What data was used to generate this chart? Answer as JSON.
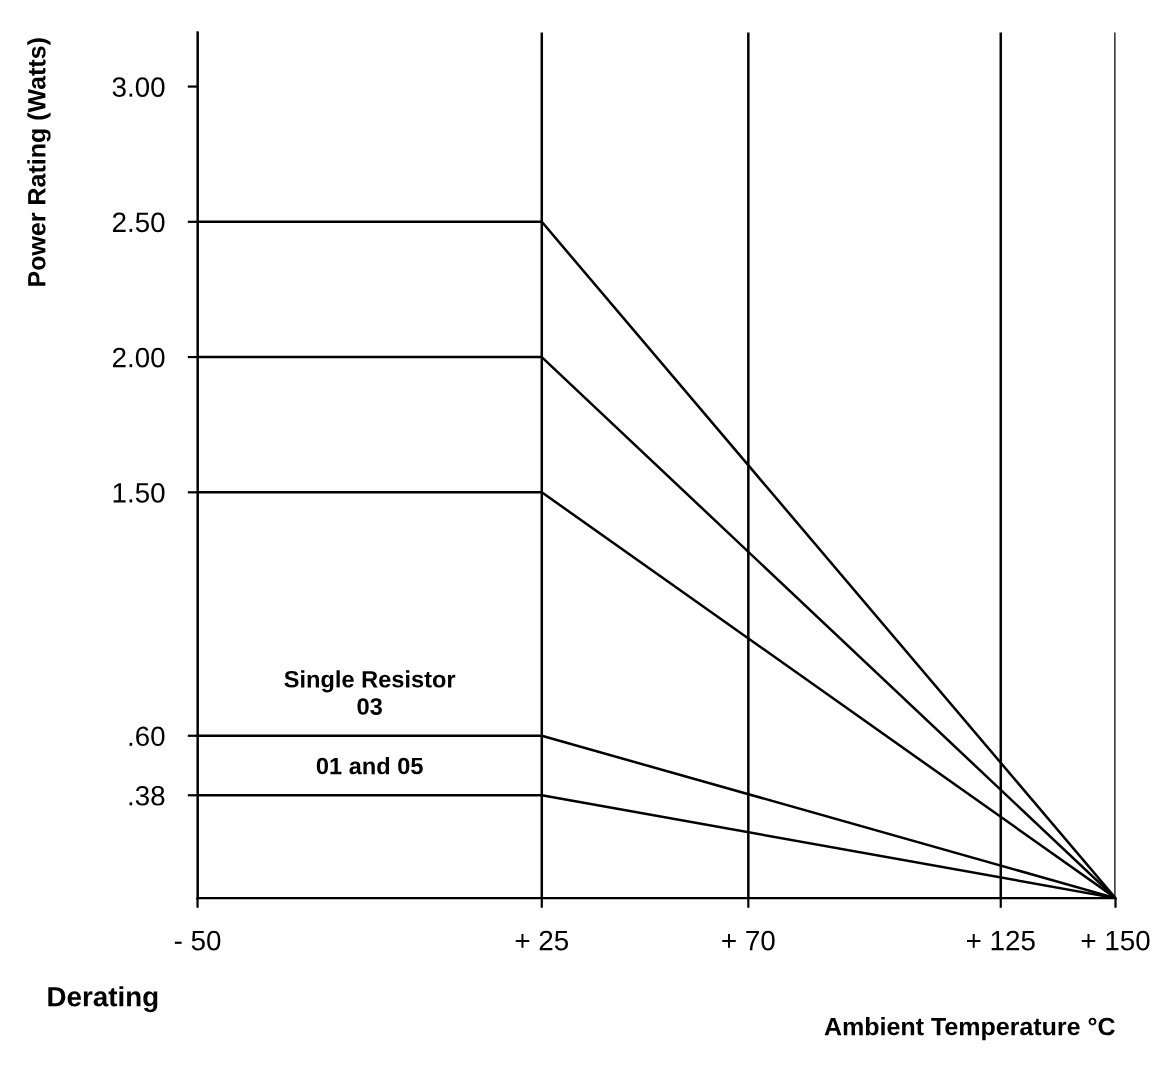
{
  "chart_data": {
    "type": "line",
    "ylabel": "Power Rating (Watts)",
    "xlabel": "Ambient Temperature °C",
    "annotations": [
      "Derating"
    ],
    "x": [
      -50,
      25,
      150
    ],
    "series": [
      {
        "color": "#000000",
        "values": [
          2.5,
          2.5,
          0
        ]
      },
      {
        "color": "#000000",
        "values": [
          2.0,
          2.0,
          0
        ]
      },
      {
        "color": "#000000",
        "values": [
          1.5,
          1.5,
          0
        ]
      },
      {
        "name": "Single Resistor\n03",
        "color": "#000000",
        "values": [
          0.6,
          0.6,
          0
        ]
      },
      {
        "name": "01 and 05",
        "color": "#000000",
        "values": [
          0.38,
          0.38,
          0
        ]
      }
    ],
    "xlim": [
      -50,
      150
    ],
    "ylim": [
      0,
      3.2
    ],
    "xticks": [
      {
        "value": -50,
        "label": "- 50"
      },
      {
        "value": 25,
        "label": "+ 25"
      },
      {
        "value": 70,
        "label": "+ 70"
      },
      {
        "value": 125,
        "label": "+ 125"
      },
      {
        "value": 150,
        "label": "+ 150"
      }
    ],
    "yticks": [
      {
        "value": 0.38,
        "label": ".38"
      },
      {
        "value": 0.6,
        "label": ".60"
      },
      {
        "value": 1.5,
        "label": "1.50"
      },
      {
        "value": 2.0,
        "label": "2.00"
      },
      {
        "value": 2.5,
        "label": "2.50"
      },
      {
        "value": 3.0,
        "label": "3.00"
      }
    ],
    "grid": "x",
    "legend": false,
    "marker": "none",
    "line_style": "solid"
  }
}
